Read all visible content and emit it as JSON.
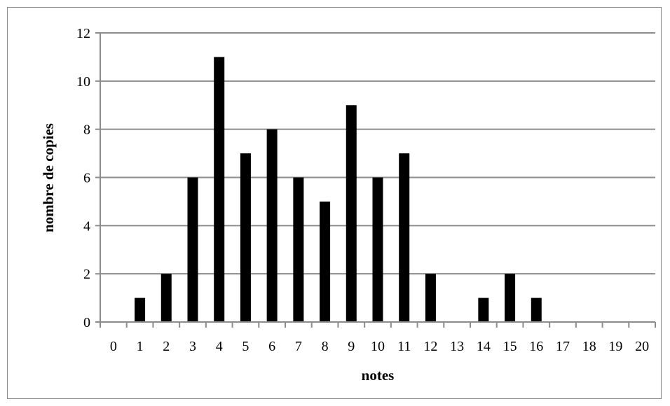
{
  "chart_data": {
    "type": "bar",
    "categories": [
      "0",
      "1",
      "2",
      "3",
      "4",
      "5",
      "6",
      "7",
      "8",
      "9",
      "10",
      "11",
      "12",
      "13",
      "14",
      "15",
      "16",
      "17",
      "18",
      "19",
      "20"
    ],
    "values": [
      0,
      1,
      2,
      6,
      11,
      7,
      8,
      6,
      5,
      9,
      6,
      7,
      2,
      0,
      1,
      2,
      1,
      0,
      0,
      0,
      0
    ],
    "xlabel": "notes",
    "ylabel": "nombre de copies",
    "ylim": [
      0,
      12
    ],
    "yticks": [
      "0",
      "2",
      "4",
      "6",
      "8",
      "10",
      "12"
    ],
    "grid": true,
    "legend": "none",
    "bar_color": "#000000",
    "grid_color": "#8c8c8c"
  }
}
